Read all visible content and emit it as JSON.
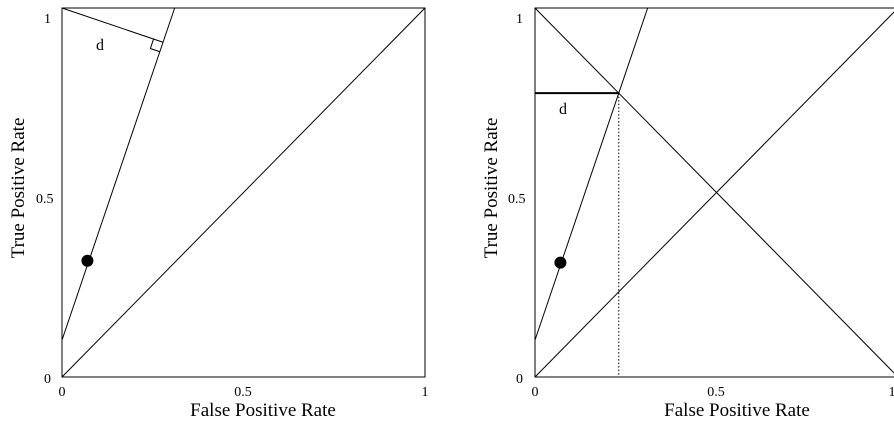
{
  "panels": [
    {
      "id": "left",
      "xlabel": "False Positive Rate",
      "ylabel": "True Positive Rate",
      "x_ticks": [
        "0",
        "0.5",
        "1"
      ],
      "y_ticks": [
        "0",
        "0.5",
        "1"
      ],
      "xlim": [
        0,
        1
      ],
      "ylim": [
        0,
        1
      ],
      "point": [
        0.07,
        0.315
      ],
      "iso_line": {
        "intercept": 0.1,
        "slope": 2.9
      },
      "diagonals": [
        "chance"
      ],
      "d_label": "d",
      "d_construction": "perpendicular from (0,1) to iso-line, with right-angle marker"
    },
    {
      "id": "right",
      "xlabel": "False Positive Rate",
      "ylabel": "True Positive Rate",
      "x_ticks": [
        "0",
        "0.5",
        "1"
      ],
      "y_ticks": [
        "0",
        "0.5",
        "1"
      ],
      "xlim": [
        0,
        1
      ],
      "ylim": [
        0,
        1
      ],
      "point": [
        0.07,
        0.31
      ],
      "iso_line": {
        "intercept": 0.1,
        "slope": 2.9
      },
      "diagonals": [
        "chance",
        "anti"
      ],
      "d_label": "d",
      "d_construction": "horizontal from y-axis to intersection of iso-line and anti-diagonal, with dotted drop line"
    }
  ]
}
